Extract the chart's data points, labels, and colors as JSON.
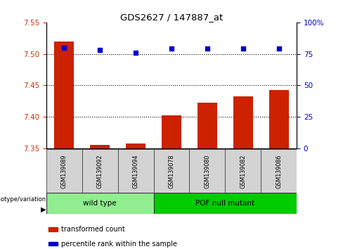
{
  "title": "GDS2627 / 147887_at",
  "samples": [
    "GSM139089",
    "GSM139092",
    "GSM139094",
    "GSM139078",
    "GSM139080",
    "GSM139082",
    "GSM139086"
  ],
  "transformed_counts": [
    7.52,
    7.355,
    7.357,
    7.402,
    7.422,
    7.432,
    7.442
  ],
  "percentile_ranks": [
    80,
    78,
    76,
    79,
    79,
    79,
    79
  ],
  "groups": [
    {
      "label": "wild type",
      "indices": [
        0,
        1,
        2
      ],
      "color": "#90EE90"
    },
    {
      "label": "POF null mutant",
      "indices": [
        3,
        4,
        5,
        6
      ],
      "color": "#00CC00"
    }
  ],
  "ylim_left": [
    7.35,
    7.55
  ],
  "ylim_right": [
    0,
    100
  ],
  "yticks_left": [
    7.35,
    7.4,
    7.45,
    7.5,
    7.55
  ],
  "yticks_right": [
    0,
    25,
    50,
    75,
    100
  ],
  "ytick_labels_right": [
    "0",
    "25",
    "50",
    "75",
    "100%"
  ],
  "bar_color": "#CC2200",
  "dot_color": "#0000CC",
  "bar_baseline": 7.35,
  "grid_lines": [
    7.4,
    7.45,
    7.5
  ],
  "legend_items": [
    {
      "label": "transformed count",
      "color": "#CC2200"
    },
    {
      "label": "percentile rank within the sample",
      "color": "#0000CC"
    }
  ],
  "bar_width": 0.55
}
